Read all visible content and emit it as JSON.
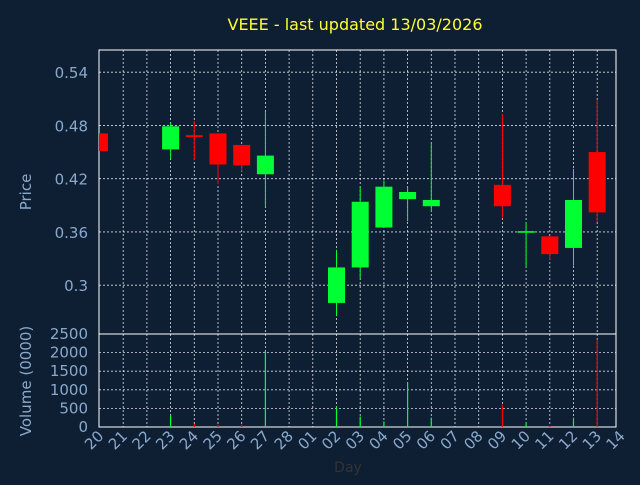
{
  "chart_data": {
    "type": "candlestick",
    "title": "VEEE - last updated 13/03/2026",
    "price_axis": {
      "label": "Price",
      "ticks": [
        "0.54",
        "0.48",
        "0.42",
        "0.36",
        "0.3"
      ],
      "tick_values": [
        0.54,
        0.48,
        0.42,
        0.36,
        0.3
      ],
      "range": [
        0.245,
        0.565
      ]
    },
    "volume_axis": {
      "label": "Volume (0000)",
      "ticks": [
        "2500",
        "2000",
        "1500",
        "1000",
        "500",
        "0"
      ],
      "tick_values": [
        2500,
        2000,
        1500,
        1000,
        500,
        0
      ],
      "range": [
        0,
        2500
      ]
    },
    "x_axis": {
      "label": "Day",
      "ticks": [
        "20",
        "21",
        "22",
        "23",
        "24",
        "25",
        "26",
        "27",
        "28",
        "01",
        "02",
        "03",
        "04",
        "05",
        "06",
        "07",
        "08",
        "09",
        "10",
        "11",
        "12",
        "13",
        "14"
      ]
    },
    "grid": true,
    "series": [
      {
        "day": "20",
        "open": 0.471,
        "close": 0.451,
        "high": 0.471,
        "low": 0.451,
        "volume": 0
      },
      {
        "day": "23",
        "open": 0.453,
        "close": 0.479,
        "high": 0.483,
        "low": 0.442,
        "volume": 320
      },
      {
        "day": "24",
        "open": 0.469,
        "close": 0.467,
        "high": 0.485,
        "low": 0.441,
        "volume": 80
      },
      {
        "day": "25",
        "open": 0.471,
        "close": 0.436,
        "high": 0.471,
        "low": 0.414,
        "volume": 60
      },
      {
        "day": "26",
        "open": 0.458,
        "close": 0.435,
        "high": 0.458,
        "low": 0.428,
        "volume": 60
      },
      {
        "day": "27",
        "open": 0.425,
        "close": 0.446,
        "high": 0.496,
        "low": 0.388,
        "volume": 2050
      },
      {
        "day": "02",
        "open": 0.28,
        "close": 0.32,
        "high": 0.34,
        "low": 0.265,
        "volume": 550
      },
      {
        "day": "03",
        "open": 0.32,
        "close": 0.394,
        "high": 0.411,
        "low": 0.308,
        "volume": 280
      },
      {
        "day": "04",
        "open": 0.365,
        "close": 0.411,
        "high": 0.418,
        "low": 0.365,
        "volume": 150
      },
      {
        "day": "05",
        "open": 0.397,
        "close": 0.405,
        "high": 0.411,
        "low": 0.372,
        "volume": 1200
      },
      {
        "day": "06",
        "open": 0.389,
        "close": 0.396,
        "high": 0.46,
        "low": 0.383,
        "volume": 250
      },
      {
        "day": "09",
        "open": 0.413,
        "close": 0.389,
        "high": 0.493,
        "low": 0.376,
        "volume": 600
      },
      {
        "day": "10",
        "open": 0.36,
        "close": 0.36,
        "high": 0.371,
        "low": 0.32,
        "volume": 120
      },
      {
        "day": "11",
        "open": 0.355,
        "close": 0.335,
        "high": 0.355,
        "low": 0.328,
        "volume": 30
      },
      {
        "day": "12",
        "open": 0.342,
        "close": 0.396,
        "high": 0.431,
        "low": 0.322,
        "volume": 250
      },
      {
        "day": "13",
        "open": 0.45,
        "close": 0.382,
        "high": 0.509,
        "low": 0.371,
        "volume": 2350
      }
    ],
    "colors": {
      "background": "#0f1f33",
      "title": "#ffff33",
      "axis_text": "#8aa9cc",
      "up": "#00ff33",
      "down": "#ff0000",
      "grid": "#ffffff"
    }
  }
}
